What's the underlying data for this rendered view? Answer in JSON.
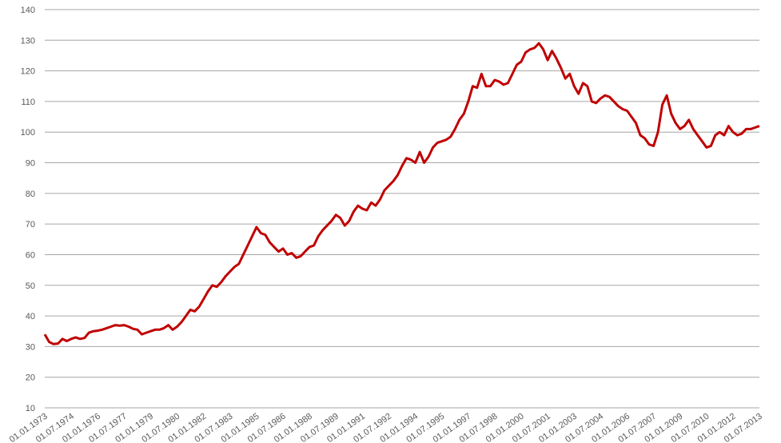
{
  "chart_data": {
    "type": "line",
    "x": [
      "01.01.1973",
      "01.04.1973",
      "01.07.1973",
      "01.10.1973",
      "01.01.1974",
      "01.04.1974",
      "01.07.1974",
      "01.10.1974",
      "01.01.1975",
      "01.04.1975",
      "01.07.1975",
      "01.10.1975",
      "01.01.1976",
      "01.04.1976",
      "01.07.1976",
      "01.10.1976",
      "01.01.1977",
      "01.04.1977",
      "01.07.1977",
      "01.10.1977",
      "01.01.1978",
      "01.04.1978",
      "01.07.1978",
      "01.10.1978",
      "01.01.1979",
      "01.04.1979",
      "01.07.1979",
      "01.10.1979",
      "01.01.1980",
      "01.04.1980",
      "01.07.1980",
      "01.10.1980",
      "01.01.1981",
      "01.04.1981",
      "01.07.1981",
      "01.10.1981",
      "01.01.1982",
      "01.04.1982",
      "01.07.1982",
      "01.10.1982",
      "01.01.1983",
      "01.04.1983",
      "01.07.1983",
      "01.10.1983",
      "01.01.1984",
      "01.04.1984",
      "01.07.1984",
      "01.10.1984",
      "01.01.1985",
      "01.04.1985",
      "01.07.1985",
      "01.10.1985",
      "01.01.1986",
      "01.04.1986",
      "01.07.1986",
      "01.10.1986",
      "01.01.1987",
      "01.04.1987",
      "01.07.1987",
      "01.10.1987",
      "01.01.1988",
      "01.04.1988",
      "01.07.1988",
      "01.10.1988",
      "01.01.1989",
      "01.04.1989",
      "01.07.1989",
      "01.10.1989",
      "01.01.1990",
      "01.04.1990",
      "01.07.1990",
      "01.10.1990",
      "01.01.1991",
      "01.04.1991",
      "01.07.1991",
      "01.10.1991",
      "01.01.1992",
      "01.04.1992",
      "01.07.1992",
      "01.10.1992",
      "01.01.1993",
      "01.04.1993",
      "01.07.1993",
      "01.10.1993",
      "01.01.1994",
      "01.04.1994",
      "01.07.1994",
      "01.10.1994",
      "01.01.1995",
      "01.04.1995",
      "01.07.1995",
      "01.10.1995",
      "01.01.1996",
      "01.04.1996",
      "01.07.1996",
      "01.10.1996",
      "01.01.1997",
      "01.04.1997",
      "01.07.1997",
      "01.10.1997",
      "01.01.1998",
      "01.04.1998",
      "01.07.1998",
      "01.10.1998",
      "01.01.1999",
      "01.04.1999",
      "01.07.1999",
      "01.10.1999",
      "01.01.2000",
      "01.04.2000",
      "01.07.2000",
      "01.10.2000",
      "01.01.2001",
      "01.04.2001",
      "01.07.2001",
      "01.10.2001",
      "01.01.2002",
      "01.04.2002",
      "01.07.2002",
      "01.10.2002",
      "01.01.2003",
      "01.04.2003",
      "01.07.2003",
      "01.10.2003",
      "01.01.2004",
      "01.04.2004",
      "01.07.2004",
      "01.10.2004",
      "01.01.2005",
      "01.04.2005",
      "01.07.2005",
      "01.10.2005",
      "01.01.2006",
      "01.04.2006",
      "01.07.2006",
      "01.10.2006",
      "01.01.2007",
      "01.04.2007",
      "01.07.2007",
      "01.10.2007",
      "01.01.2008",
      "01.04.2008",
      "01.07.2008",
      "01.10.2008",
      "01.01.2009",
      "01.04.2009",
      "01.07.2009",
      "01.10.2009",
      "01.01.2010",
      "01.04.2010",
      "01.07.2010",
      "01.10.2010",
      "01.01.2011",
      "01.04.2011",
      "01.07.2011",
      "01.10.2011",
      "01.01.2012",
      "01.04.2012",
      "01.07.2012",
      "01.10.2012",
      "01.01.2013",
      "01.04.2013",
      "01.07.2013"
    ],
    "series": [
      {
        "color": "#c00000",
        "values": [
          34,
          31.5,
          30.8,
          31,
          32.5,
          31.8,
          32.5,
          33,
          32.5,
          32.8,
          34.5,
          35,
          35.2,
          35.5,
          36,
          36.5,
          37,
          36.8,
          37,
          36.5,
          35.8,
          35.5,
          34,
          34.5,
          35,
          35.5,
          35.5,
          36,
          37,
          35.5,
          36.5,
          38,
          40,
          42,
          41.5,
          43,
          45.5,
          48,
          50,
          49.5,
          51,
          53,
          54.5,
          56,
          57,
          60,
          63,
          66,
          69,
          67,
          66.5,
          64,
          62.5,
          61,
          62,
          60,
          60.5,
          59,
          59.5,
          61,
          62.5,
          63,
          66,
          68,
          69.5,
          71,
          73,
          72,
          69.5,
          71,
          74,
          76,
          75,
          74.5,
          77,
          76,
          78,
          81,
          82.5,
          84,
          86,
          89,
          91.5,
          91,
          90,
          93.5,
          90,
          92,
          95,
          96.5,
          97,
          97.5,
          98.5,
          101,
          104,
          106,
          110,
          115,
          114.5,
          119,
          115,
          115,
          117,
          116.5,
          115.5,
          116,
          119,
          122,
          123,
          126,
          127,
          127.5,
          129,
          127,
          123.5,
          126.5,
          124,
          121,
          117.5,
          119,
          115,
          112.5,
          116,
          115,
          110,
          109.5,
          111,
          112,
          111.5,
          110,
          108.5,
          107.5,
          107,
          105,
          103,
          99,
          98,
          96,
          95.5,
          100,
          109,
          112,
          106,
          103,
          101,
          102,
          104,
          101,
          99,
          97,
          95,
          95.5,
          99,
          100,
          99,
          102,
          100,
          99,
          99.5,
          101,
          101,
          101.5,
          102
        ]
      }
    ],
    "xlim": [
      "01.01.1973",
      "01.07.2013"
    ],
    "xticks": [
      "01.01.1973",
      "01.07.1974",
      "01.01.1976",
      "01.07.1977",
      "01.01.1979",
      "01.07.1980",
      "01.01.1982",
      "01.07.1983",
      "01.01.1985",
      "01.07.1986",
      "01.01.1988",
      "01.07.1989",
      "01.01.1991",
      "01.07.1992",
      "01.01.1994",
      "01.07.1995",
      "01.01.1997",
      "01.07.1998",
      "01.01.2000",
      "01.07.2001",
      "01.01.2003",
      "01.07.2004",
      "01.01.2006",
      "01.07.2007",
      "01.01.2009",
      "01.07.2010",
      "01.01.2012",
      "01.07.2013"
    ],
    "ylim": [
      10,
      140
    ],
    "yticks": [
      10,
      20,
      30,
      40,
      50,
      60,
      70,
      80,
      90,
      100,
      110,
      120,
      130,
      140
    ],
    "grid": true
  }
}
